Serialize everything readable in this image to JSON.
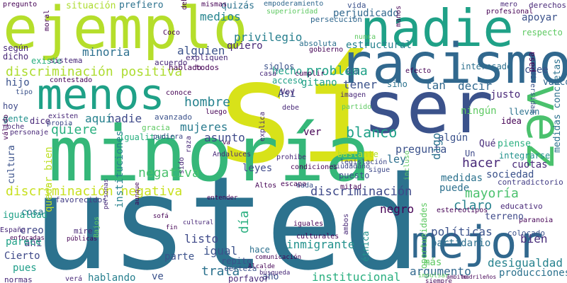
{
  "words": [
    {
      "text": "sí",
      "color": "#d8e219"
    },
    {
      "text": "usted",
      "color": "#2c728e"
    },
    {
      "text": "minoría",
      "color": "#35b779"
    },
    {
      "text": "ejemplo",
      "color": "#b5de2b"
    },
    {
      "text": "ser",
      "color": "#3b528b"
    },
    {
      "text": "nadie",
      "color": "#1fa187"
    },
    {
      "text": "racismo",
      "color": "#31688e"
    },
    {
      "text": "menos",
      "color": "#1fa187"
    },
    {
      "text": "mejor",
      "color": "#31688e"
    },
    {
      "text": "vez",
      "color": "#4ac16d"
    },
    {
      "text": "discriminación positiva",
      "color": "#addc30"
    },
    {
      "text": "discriminación negativa",
      "color": "#c8e020"
    },
    {
      "text": "discriminación",
      "color": "#3e4989"
    },
    {
      "text": "negativa",
      "color": "#4ac16d"
    },
    {
      "text": "hombre",
      "color": "#26828e"
    },
    {
      "text": "problema",
      "color": "#1fa187"
    },
    {
      "text": "privilegio",
      "color": "#277f8e"
    },
    {
      "text": "minoria",
      "color": "#2d708e"
    },
    {
      "text": "alguien",
      "color": "#3b528b"
    },
    {
      "text": "medios",
      "color": "#25848e"
    },
    {
      "text": "quizás",
      "color": "#2c728e"
    },
    {
      "text": "prefiero",
      "color": "#2c728e"
    },
    {
      "text": "situación",
      "color": "#addc30"
    },
    {
      "text": "pregunto",
      "color": "#440154"
    },
    {
      "text": "nadie",
      "color": "#3e4989"
    },
    {
      "text": "quiere",
      "color": "#29af7f"
    },
    {
      "text": "mujeres",
      "color": "#297b8e"
    },
    {
      "text": "aquí",
      "color": "#26828e"
    },
    {
      "text": "asunto",
      "color": "#3e4989"
    },
    {
      "text": "leyes",
      "color": "#3e4989"
    },
    {
      "text": "ver",
      "color": "#440154"
    },
    {
      "text": "blanco",
      "color": "#1fa187"
    },
    {
      "text": "pregunta",
      "color": "#3b528b"
    },
    {
      "text": "algún",
      "color": "#3b528b"
    },
    {
      "text": "ley",
      "color": "#2d708e"
    },
    {
      "text": "hacer",
      "color": "#482878"
    },
    {
      "text": "Qué",
      "color": "#472c7a"
    },
    {
      "text": "piense",
      "color": "#29af7f"
    },
    {
      "text": "medidas",
      "color": "#2c728e"
    },
    {
      "text": "cuotas",
      "color": "#482878"
    },
    {
      "text": "sociedad",
      "color": "#3b528b"
    },
    {
      "text": "puede",
      "color": "#2d708e"
    },
    {
      "text": "digo",
      "color": "#2c728e"
    },
    {
      "text": "negro",
      "color": "#440154"
    },
    {
      "text": "mayoría",
      "color": "#4ac16d"
    },
    {
      "text": "claro",
      "color": "#26828e"
    },
    {
      "text": "políticas",
      "color": "#3b528b"
    },
    {
      "text": "partidario",
      "color": "#2d708e"
    },
    {
      "text": "bien",
      "color": "#472c7a"
    },
    {
      "text": "igual",
      "color": "#3b528b"
    },
    {
      "text": "listo",
      "color": "#3e4989"
    },
    {
      "text": "parte",
      "color": "#3b528b"
    },
    {
      "text": "día",
      "color": "#29af7f"
    },
    {
      "text": "trata",
      "color": "#2c728e"
    },
    {
      "text": "hablando",
      "color": "#277f8e"
    },
    {
      "text": "ve",
      "color": "#3b528b"
    },
    {
      "text": "inmigrante",
      "color": "#21918c"
    },
    {
      "text": "institucional",
      "color": "#29af7f"
    },
    {
      "text": "argumento",
      "color": "#31688e"
    },
    {
      "text": "más",
      "color": "#5ec962"
    },
    {
      "text": "desigualdad",
      "color": "#26828e"
    },
    {
      "text": "producciones",
      "color": "#2c728e"
    },
    {
      "text": "año",
      "color": "#3b528b"
    },
    {
      "text": "porfavor",
      "color": "#482878"
    },
    {
      "text": "creo",
      "color": "#404688"
    },
    {
      "text": "ahí",
      "color": "#433e85"
    },
    {
      "text": "pues",
      "color": "#1f9e89"
    },
    {
      "text": "Cierto",
      "color": "#3e4989"
    },
    {
      "text": "parece",
      "color": "#1fa187"
    },
    {
      "text": "instituciones",
      "color": "#26828e"
    },
    {
      "text": "quedar bien",
      "color": "#bddf26"
    },
    {
      "text": "cultura",
      "color": "#3b528b"
    },
    {
      "text": "cosa",
      "color": "#2c728e"
    },
    {
      "text": "igualdad",
      "color": "#1fa187"
    },
    {
      "text": "gente",
      "color": "#21918c"
    },
    {
      "text": "hoy",
      "color": "#3e4989"
    },
    {
      "text": "hijo",
      "color": "#3b528b"
    },
    {
      "text": "existe",
      "color": "#29af7f"
    },
    {
      "text": "según",
      "color": "#482878"
    },
    {
      "text": "dicho",
      "color": "#482878"
    },
    {
      "text": "hecho",
      "color": "#1fa187"
    },
    {
      "text": "acceso",
      "color": "#1fa187"
    },
    {
      "text": "gitano",
      "color": "#1fa187"
    },
    {
      "text": "Así",
      "color": "#3e4989"
    },
    {
      "text": "tener",
      "color": "#3b528b"
    },
    {
      "text": "sino",
      "color": "#2c728e"
    },
    {
      "text": "tan",
      "color": "#31688e"
    },
    {
      "text": "decir",
      "color": "#31688e"
    },
    {
      "text": "justo",
      "color": "#482878"
    },
    {
      "text": "ningún",
      "color": "#5ec962"
    },
    {
      "text": "cree",
      "color": "#3b528b"
    },
    {
      "text": "apoyar",
      "color": "#3b528b"
    },
    {
      "text": "respecto",
      "color": "#5ec962"
    },
    {
      "text": "interesado",
      "color": "#2d708e"
    },
    {
      "text": "estructural",
      "color": "#26828e"
    },
    {
      "text": "perjudicado",
      "color": "#31688e"
    },
    {
      "text": "empoderamiento",
      "color": "#31688e"
    },
    {
      "text": "persecución",
      "color": "#31688e"
    },
    {
      "text": "absoluta",
      "color": "#2d708e"
    },
    {
      "text": "quiero",
      "color": "#482878"
    },
    {
      "text": "da",
      "color": "#31688e"
    },
    {
      "text": "medidas concretas",
      "color": "#2c728e"
    },
    {
      "text": "vascos",
      "color": "#31688e"
    },
    {
      "text": "diversidad",
      "color": "#3b528b"
    },
    {
      "text": "pasa",
      "color": "#440154"
    },
    {
      "text": "llevan",
      "color": "#2c728e"
    },
    {
      "text": "idea",
      "color": "#440154"
    },
    {
      "text": "Un",
      "color": "#3e4989"
    },
    {
      "text": "integrarse",
      "color": "#21918c"
    },
    {
      "text": "contradictorio",
      "color": "#433e85"
    },
    {
      "text": "educativo",
      "color": "#482878"
    },
    {
      "text": "paranoia",
      "color": "#440154"
    },
    {
      "text": "terreno",
      "color": "#3e4989"
    },
    {
      "text": "colocado",
      "color": "#3b528b"
    },
    {
      "text": "estereotipos",
      "color": "#440154"
    },
    {
      "text": "derechos",
      "color": "#482878"
    },
    {
      "text": "Altos",
      "color": "#440154"
    },
    {
      "text": "escapa",
      "color": "#440154"
    },
    {
      "text": "mitad",
      "color": "#440154"
    },
    {
      "text": "incluso",
      "color": "#5ec962"
    },
    {
      "text": "bastante",
      "color": "#b5de2b"
    },
    {
      "text": "legislación",
      "color": "#3e4989"
    },
    {
      "text": "ciudadano",
      "color": "#3e4989"
    },
    {
      "text": "sigue",
      "color": "#3e4989"
    },
    {
      "text": "hace",
      "color": "#2d708e"
    },
    {
      "text": "repito",
      "color": "#3b528b"
    },
    {
      "text": "certeza",
      "color": "#3b528b"
    },
    {
      "text": "étnica",
      "color": "#21918c"
    },
    {
      "text": "oportunidades",
      "color": "#5ec962"
    },
    {
      "text": "puesto",
      "color": "#3b528b"
    },
    {
      "text": "nada",
      "color": "#3b528b"
    },
    {
      "text": "condiciones",
      "color": "#440154"
    },
    {
      "text": "prohibe",
      "color": "#482878"
    },
    {
      "text": "explica",
      "color": "#482878"
    },
    {
      "text": "sido",
      "color": "#482878"
    },
    {
      "text": "raza",
      "color": "#482878"
    },
    {
      "text": "Andaluces",
      "color": "#482878"
    },
    {
      "text": "igualitario",
      "color": "#29af7f"
    },
    {
      "text": "gracia",
      "color": "#5ec962"
    },
    {
      "text": "pudiera",
      "color": "#3e4989"
    },
    {
      "text": "avanzado",
      "color": "#3b528b"
    },
    {
      "text": "luego",
      "color": "#440154"
    },
    {
      "text": "conoce",
      "color": "#440154"
    },
    {
      "text": "debe",
      "color": "#482878"
    },
    {
      "text": "partido",
      "color": "#5ec962"
    },
    {
      "text": "imagen",
      "color": "#482878"
    },
    {
      "text": "Voy",
      "color": "#482878"
    },
    {
      "text": "casa",
      "color": "#482878"
    },
    {
      "text": "siglos",
      "color": "#3b528b"
    },
    {
      "text": "cumplir",
      "color": "#440154"
    },
    {
      "text": "efecto",
      "color": "#440154"
    },
    {
      "text": "acuerdo",
      "color": "#482878"
    },
    {
      "text": "expliquen",
      "color": "#482878"
    },
    {
      "text": "hablado",
      "color": "#440154"
    },
    {
      "text": "todos",
      "color": "#440154"
    },
    {
      "text": "Coco",
      "color": "#440154"
    },
    {
      "text": "sistema",
      "color": "#482878"
    },
    {
      "text": "contestado",
      "color": "#440154"
    },
    {
      "text": "tipo",
      "color": "#3b528b"
    },
    {
      "text": "noche",
      "color": "#482878"
    },
    {
      "text": "personaje",
      "color": "#482878"
    },
    {
      "text": "existen",
      "color": "#482878"
    },
    {
      "text": "propia",
      "color": "#3e4989"
    },
    {
      "text": "dice",
      "color": "#482878"
    },
    {
      "text": "válido",
      "color": "#440154"
    },
    {
      "text": "moral",
      "color": "#440154"
    },
    {
      "text": "mismas",
      "color": "#440154"
    },
    {
      "text": "superioridad",
      "color": "#5ec962"
    },
    {
      "text": "deberían",
      "color": "#440154"
    },
    {
      "text": "nunca",
      "color": "#5ec962"
    },
    {
      "text": "manos",
      "color": "#440154"
    },
    {
      "text": "gobierno",
      "color": "#440154"
    },
    {
      "text": "mero",
      "color": "#482878"
    },
    {
      "text": "profesional",
      "color": "#440154"
    },
    {
      "text": "vida",
      "color": "#3b528b"
    },
    {
      "text": "España",
      "color": "#482878"
    },
    {
      "text": "enfocadas",
      "color": "#440154"
    },
    {
      "text": "normas",
      "color": "#482878"
    },
    {
      "text": "favorecidos",
      "color": "#433e85"
    },
    {
      "text": "mire",
      "color": "#482878"
    },
    {
      "text": "públicas",
      "color": "#440154"
    },
    {
      "text": "verá",
      "color": "#482878"
    },
    {
      "text": "Bajos",
      "color": "#5ec962"
    },
    {
      "text": "personas",
      "color": "#482878"
    },
    {
      "text": "aunque",
      "color": "#440154"
    },
    {
      "text": "sofá",
      "color": "#440154"
    },
    {
      "text": "fin",
      "color": "#440154"
    },
    {
      "text": "cultural",
      "color": "#482878"
    },
    {
      "text": "entender",
      "color": "#440154"
    },
    {
      "text": "comunicación",
      "color": "#440154"
    },
    {
      "text": "Alcalde",
      "color": "#440154"
    },
    {
      "text": "búsqueda",
      "color": "#482878"
    },
    {
      "text": "iguales",
      "color": "#440154"
    },
    {
      "text": "culturales",
      "color": "#440154"
    },
    {
      "text": "ambos",
      "color": "#482878"
    },
    {
      "text": "impulsar",
      "color": "#5ec962"
    },
    {
      "text": "siempre",
      "color": "#440154"
    },
    {
      "text": "ámbito",
      "color": "#440154"
    },
    {
      "text": "madrileños",
      "color": "#440154"
    },
    {
      "text": "va",
      "color": "#440154"
    }
  ]
}
